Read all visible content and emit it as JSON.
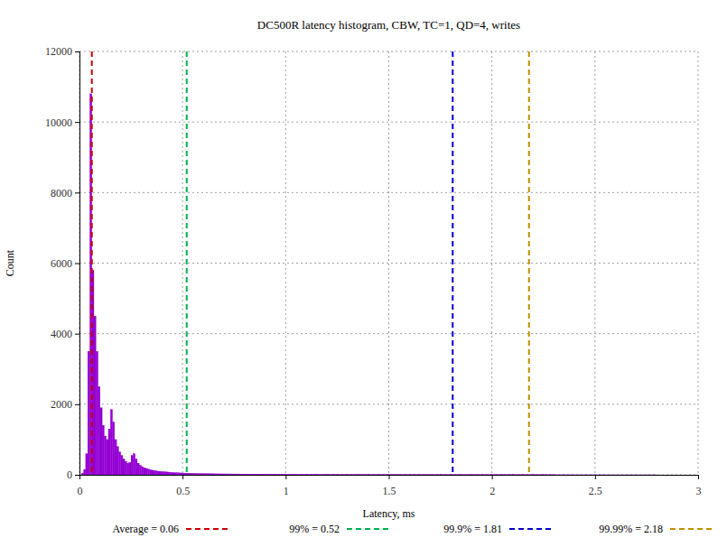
{
  "chart_data": {
    "type": "histogram",
    "title": "DC500R latency histogram, CBW, TC=1, QD=4, writes",
    "x_label": "Latency, ms",
    "y_label": "Count",
    "color": "#9400d3",
    "grid": true,
    "xlim": [
      0,
      3
    ],
    "xticks": [
      0,
      0.5,
      1,
      1.5,
      2,
      2.5,
      3
    ],
    "ylim": [
      0,
      12000
    ],
    "yticks": [
      0,
      2000,
      4000,
      6000,
      8000,
      10000,
      12000
    ],
    "bins": [
      0,
      0.01,
      0.02,
      0.03,
      0.04,
      0.05,
      0.06,
      0.07,
      0.08,
      0.09,
      0.1,
      0.11,
      0.12,
      0.13,
      0.14,
      0.15,
      0.16,
      0.17,
      0.18,
      0.19,
      0.2,
      0.21,
      0.22,
      0.23,
      0.24,
      0.25,
      0.26,
      0.27,
      0.28,
      0.29,
      0.3,
      0.31,
      0.32,
      0.33,
      0.34,
      0.35,
      0.36,
      0.37,
      0.38,
      0.39,
      0.4,
      0.41,
      0.42,
      0.43,
      0.44,
      0.45,
      0.46,
      0.47,
      0.48,
      0.49,
      0.5,
      0.51,
      0.52,
      0.53,
      0.54,
      0.55,
      0.56,
      0.57,
      0.58,
      0.59,
      0.6,
      0.61,
      0.62,
      0.63,
      0.64,
      0.65,
      0.66,
      0.67,
      0.68,
      0.69,
      0.7,
      0.71,
      0.72,
      0.73,
      0.74,
      0.75,
      0.76,
      0.77,
      0.78,
      0.79,
      0.8,
      0.81,
      0.82,
      0.83,
      0.84,
      0.85,
      0.86,
      0.87,
      0.88,
      0.89,
      0.9,
      0.91,
      0.92,
      0.93,
      0.94,
      0.95,
      0.96,
      0.97,
      0.98,
      0.99,
      1.0,
      1.05,
      1.1,
      1.15,
      1.2,
      1.25,
      1.3,
      1.35,
      1.4,
      1.45,
      1.5,
      1.55,
      1.6,
      1.65,
      1.7,
      1.75,
      1.8,
      1.85,
      1.9,
      1.95,
      2.0,
      2.05,
      2.1,
      2.15,
      2.2,
      2.25,
      2.3,
      2.35,
      2.4,
      2.45,
      2.5,
      2.55,
      2.6,
      2.65,
      2.7,
      2.75,
      2.8,
      2.85,
      2.9,
      2.95,
      3.0
    ],
    "counts": [
      0,
      50,
      150,
      600,
      3500,
      10800,
      5800,
      4500,
      3500,
      2500,
      1900,
      1400,
      1100,
      1000,
      1300,
      1850,
      1500,
      1000,
      800,
      650,
      550,
      450,
      380,
      330,
      350,
      550,
      600,
      450,
      330,
      270,
      230,
      200,
      180,
      160,
      140,
      130,
      120,
      110,
      100,
      95,
      90,
      85,
      80,
      75,
      70,
      65,
      60,
      58,
      55,
      52,
      50,
      48,
      46,
      44,
      42,
      40,
      38,
      37,
      36,
      35,
      34,
      33,
      32,
      31,
      30,
      29,
      28,
      28,
      27,
      27,
      26,
      26,
      25,
      25,
      24,
      24,
      23,
      23,
      22,
      22,
      22,
      21,
      21,
      20,
      20,
      20,
      19,
      19,
      19,
      18,
      18,
      18,
      17,
      17,
      17,
      16,
      16,
      16,
      15,
      15,
      15,
      14,
      14,
      13,
      13,
      12,
      12,
      12,
      11,
      11,
      11,
      10,
      10,
      10,
      9,
      9,
      9,
      8,
      8,
      8,
      8,
      7,
      7,
      6,
      5,
      4,
      3,
      3,
      2,
      2,
      2,
      1,
      1,
      1,
      1,
      1,
      0,
      0,
      0,
      0
    ],
    "vlines": [
      {
        "label": "Average = 0.06",
        "value": 0.06,
        "color": "#cc0000",
        "line_style": "dashed"
      },
      {
        "label": "99% = 0.52",
        "value": 0.52,
        "color": "#00b050",
        "line_style": "dashed"
      },
      {
        "label": "99.9% = 1.81",
        "value": 1.81,
        "color": "#0000cc",
        "line_style": "dashed"
      },
      {
        "label": "99.99% = 2.18",
        "value": 2.18,
        "color": "#c09000",
        "line_style": "dashed"
      }
    ]
  }
}
